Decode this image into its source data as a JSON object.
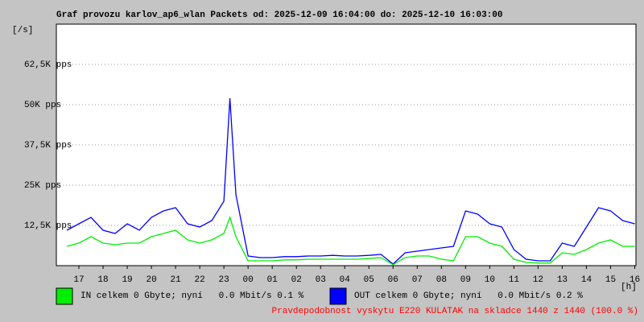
{
  "chart_data": {
    "type": "line",
    "title": "Graf provozu karlov_ap6_wlan Packets od: 2025-12-09 16:04:00 do: 2025-12-10 16:03:00",
    "y_label": "[/s]",
    "x_label": "[h]",
    "x": [
      16.5,
      17,
      17.5,
      18,
      18.5,
      19,
      19.5,
      20,
      20.5,
      21,
      21.5,
      22,
      22.5,
      23,
      23.25,
      23.5,
      24,
      24.5,
      25,
      25.5,
      26,
      26.5,
      27,
      27.5,
      28,
      28.5,
      29,
      29.5,
      30,
      30.5,
      31,
      31.5,
      32,
      32.5,
      33,
      33.5,
      34,
      34.5,
      35,
      35.5,
      36,
      36.5,
      37,
      37.5,
      38,
      38.5,
      39,
      39.5,
      40
    ],
    "series": [
      {
        "name": "IN celkem 0 Gbyte; nyní   0.0 Mbit/s 0.1 %",
        "color": "#00ee00",
        "values": [
          6000,
          7000,
          9000,
          7000,
          6500,
          7000,
          7000,
          9000,
          10000,
          11000,
          8000,
          7000,
          8000,
          10000,
          15000,
          9000,
          1500,
          1500,
          1500,
          1800,
          1800,
          2000,
          2000,
          2000,
          2000,
          2000,
          2200,
          2500,
          300,
          2500,
          3000,
          3000,
          2000,
          1500,
          9000,
          9000,
          7000,
          6000,
          2000,
          1000,
          800,
          800,
          4000,
          3500,
          5000,
          7000,
          8000,
          6000,
          6000
        ]
      },
      {
        "name": "OUT celkem 0 Gbyte; nyní   0.0 Mbit/s 0.2 %",
        "color": "#0000ff",
        "values": [
          11000,
          13000,
          15000,
          11000,
          10000,
          13000,
          11000,
          15000,
          17000,
          18000,
          13000,
          12000,
          14000,
          20000,
          52000,
          22000,
          3000,
          2500,
          2500,
          2800,
          2800,
          3000,
          3000,
          3200,
          3000,
          3000,
          3200,
          3500,
          500,
          4000,
          4500,
          5000,
          5500,
          6000,
          17000,
          16000,
          13000,
          12000,
          5000,
          2000,
          1500,
          1500,
          7000,
          6000,
          12000,
          18000,
          17000,
          14000,
          13000
        ]
      }
    ],
    "xlim": [
      16.067,
      40.05
    ],
    "xticks": [
      {
        "value": 17,
        "label": "17"
      },
      {
        "value": 18,
        "label": "18"
      },
      {
        "value": 19,
        "label": "19"
      },
      {
        "value": 20,
        "label": "20"
      },
      {
        "value": 21,
        "label": "21"
      },
      {
        "value": 22,
        "label": "22"
      },
      {
        "value": 23,
        "label": "23"
      },
      {
        "value": 24,
        "label": "00"
      },
      {
        "value": 25,
        "label": "01"
      },
      {
        "value": 26,
        "label": "02"
      },
      {
        "value": 27,
        "label": "03"
      },
      {
        "value": 28,
        "label": "04"
      },
      {
        "value": 29,
        "label": "05"
      },
      {
        "value": 30,
        "label": "06"
      },
      {
        "value": 31,
        "label": "07"
      },
      {
        "value": 32,
        "label": "08"
      },
      {
        "value": 33,
        "label": "09"
      },
      {
        "value": 34,
        "label": "10"
      },
      {
        "value": 35,
        "label": "11"
      },
      {
        "value": 36,
        "label": "12"
      },
      {
        "value": 37,
        "label": "13"
      },
      {
        "value": 38,
        "label": "14"
      },
      {
        "value": 39,
        "label": "15"
      },
      {
        "value": 40,
        "label": "16"
      }
    ],
    "ylim": [
      0,
      75000
    ],
    "yticks": [
      {
        "value": 12500,
        "label": "12,5K pps"
      },
      {
        "value": 25000,
        "label": "25K pps"
      },
      {
        "value": 37500,
        "label": "37,5K pps"
      },
      {
        "value": 50000,
        "label": "50K pps"
      },
      {
        "value": 62500,
        "label": "62,5K pps"
      }
    ],
    "grid": true,
    "footer": "Pravdepodobnost vyskytu E220 KULATAK na skladce 1440 z 1440 (100.0 %)",
    "footer_color": "#ff0000"
  }
}
